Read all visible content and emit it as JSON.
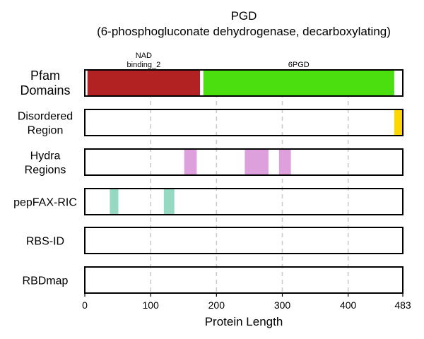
{
  "chart_data": {
    "type": "bar",
    "title_lines": [
      "PGD",
      "(6-phosphogluconate dehydrogenase, decarboxylating)"
    ],
    "xlabel": "Protein Length",
    "xlim": [
      0,
      483
    ],
    "x_ticks": [
      0,
      100,
      200,
      300,
      400,
      483
    ],
    "grid": "vertical dashed at 100, 200, 300, 400",
    "tracks": [
      {
        "name_lines": [
          "Pfam",
          "Domains"
        ],
        "segments": [
          {
            "start": 4,
            "end": 175,
            "color": "#b22222",
            "label_lines": [
              "NAD",
              "binding_2"
            ]
          },
          {
            "start": 180,
            "end": 470,
            "color": "#4cdf10",
            "label_lines": [
              "6PGD"
            ]
          }
        ]
      },
      {
        "name_lines": [
          "Disordered",
          "Region"
        ],
        "segments": [
          {
            "start": 470,
            "end": 483,
            "color": "#ffd700"
          }
        ]
      },
      {
        "name_lines": [
          "Hydra",
          "Regions"
        ],
        "segments": [
          {
            "start": 151,
            "end": 170,
            "color": "#dda0dd"
          },
          {
            "start": 243,
            "end": 279,
            "color": "#dda0dd"
          },
          {
            "start": 295,
            "end": 313,
            "color": "#dda0dd"
          }
        ]
      },
      {
        "name_lines": [
          "pepFAX-RIC"
        ],
        "segments": [
          {
            "start": 38,
            "end": 51,
            "color": "#96d9c2"
          },
          {
            "start": 120,
            "end": 136,
            "color": "#96d9c2"
          }
        ]
      },
      {
        "name_lines": [
          "RBS-ID"
        ],
        "segments": []
      },
      {
        "name_lines": [
          "RBDmap"
        ],
        "segments": []
      }
    ]
  }
}
